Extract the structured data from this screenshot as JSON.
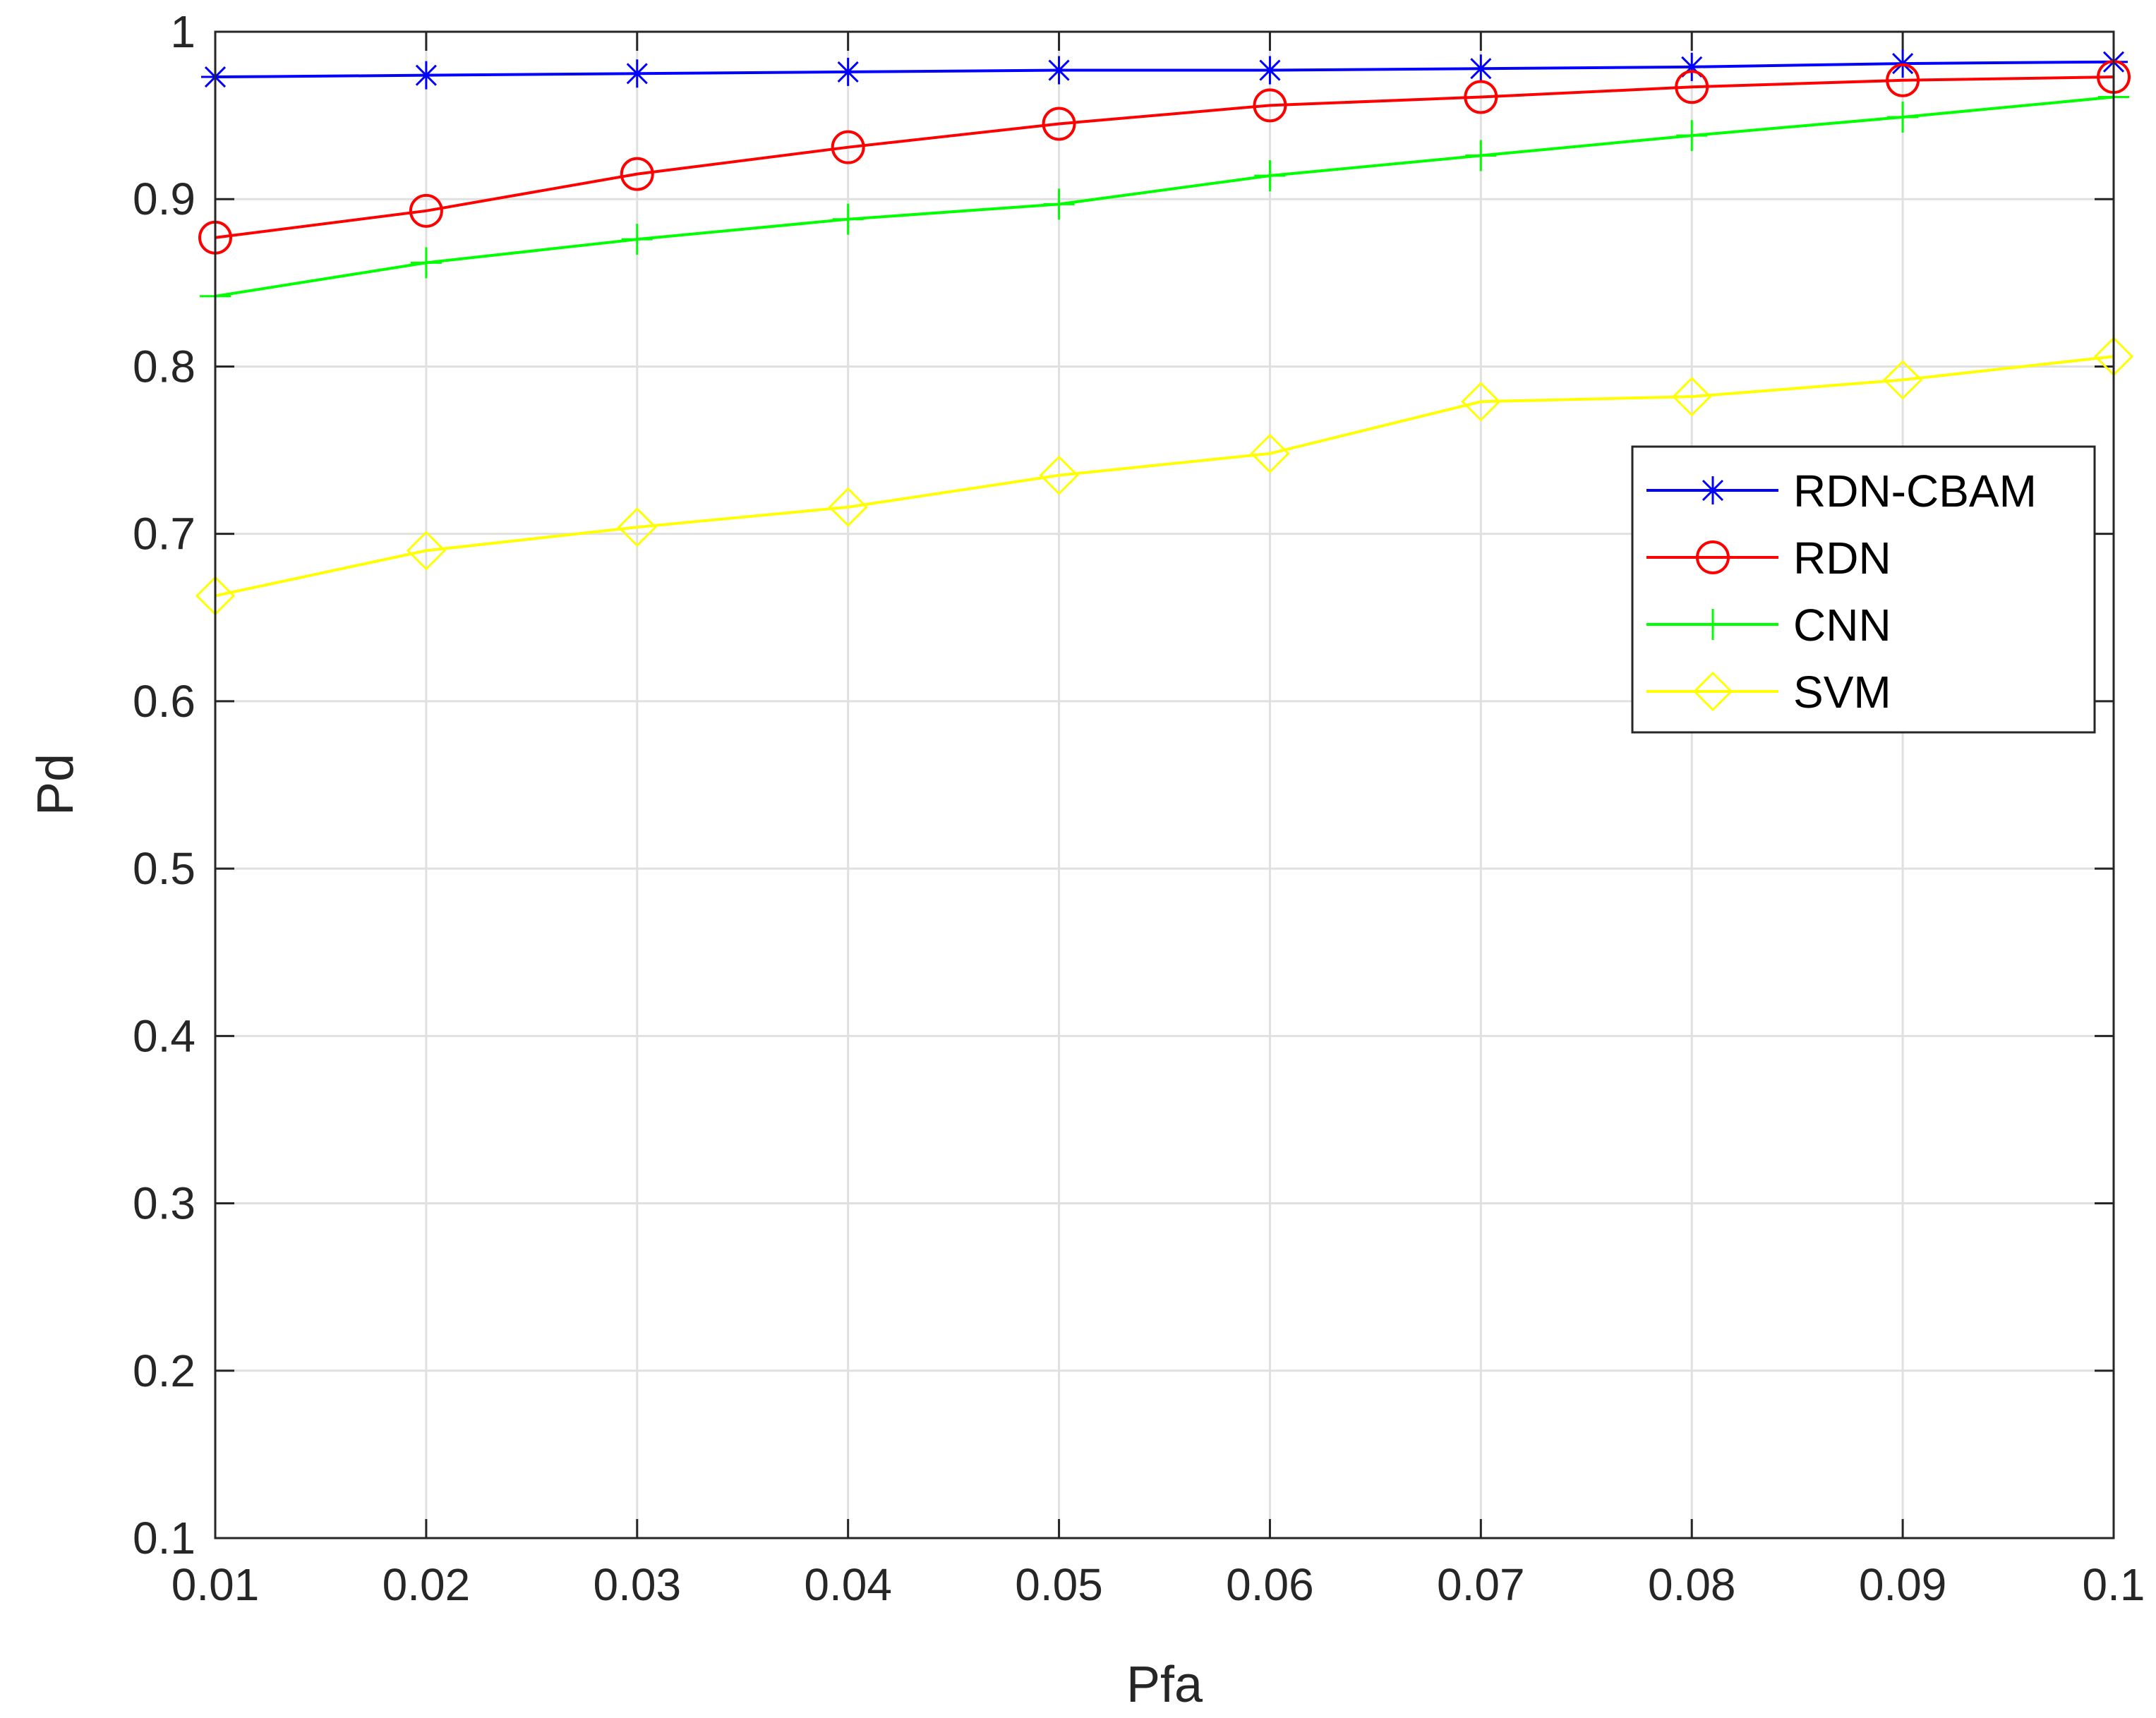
{
  "chart_data": {
    "type": "line",
    "title": "",
    "xlabel": "Pfa",
    "ylabel": "Pd",
    "xlim": [
      0.01,
      0.1
    ],
    "ylim": [
      0.1,
      1
    ],
    "grid": true,
    "legend_position": "right",
    "x": [
      0.01,
      0.02,
      0.03,
      0.04,
      0.05,
      0.06,
      0.07,
      0.08,
      0.09,
      0.1
    ],
    "x_tick_labels": [
      "0.01",
      "0.02",
      "0.03",
      "0.04",
      "0.05",
      "0.06",
      "0.07",
      "0.08",
      "0.09",
      "0.1"
    ],
    "y_ticks": [
      0.1,
      0.2,
      0.3,
      0.4,
      0.5,
      0.6,
      0.7,
      0.8,
      0.9,
      1
    ],
    "y_tick_labels": [
      "0.1",
      "0.2",
      "0.3",
      "0.4",
      "0.5",
      "0.6",
      "0.7",
      "0.8",
      "0.9",
      "1"
    ],
    "series": [
      {
        "name": "RDN-CBAM",
        "color": "#0000ff",
        "marker": "asterisk",
        "values": [
          0.973,
          0.974,
          0.975,
          0.976,
          0.977,
          0.977,
          0.978,
          0.979,
          0.981,
          0.982
        ]
      },
      {
        "name": "RDN",
        "color": "#ff0000",
        "marker": "circle",
        "values": [
          0.877,
          0.893,
          0.915,
          0.931,
          0.945,
          0.956,
          0.961,
          0.967,
          0.971,
          0.973
        ]
      },
      {
        "name": "CNN",
        "color": "#00ff00",
        "marker": "plus",
        "values": [
          0.842,
          0.862,
          0.876,
          0.888,
          0.897,
          0.914,
          0.926,
          0.938,
          0.949,
          0.961
        ]
      },
      {
        "name": "SVM",
        "color": "#ffff00",
        "marker": "diamond",
        "values": [
          0.663,
          0.69,
          0.704,
          0.716,
          0.735,
          0.748,
          0.779,
          0.782,
          0.792,
          0.806
        ]
      }
    ]
  }
}
